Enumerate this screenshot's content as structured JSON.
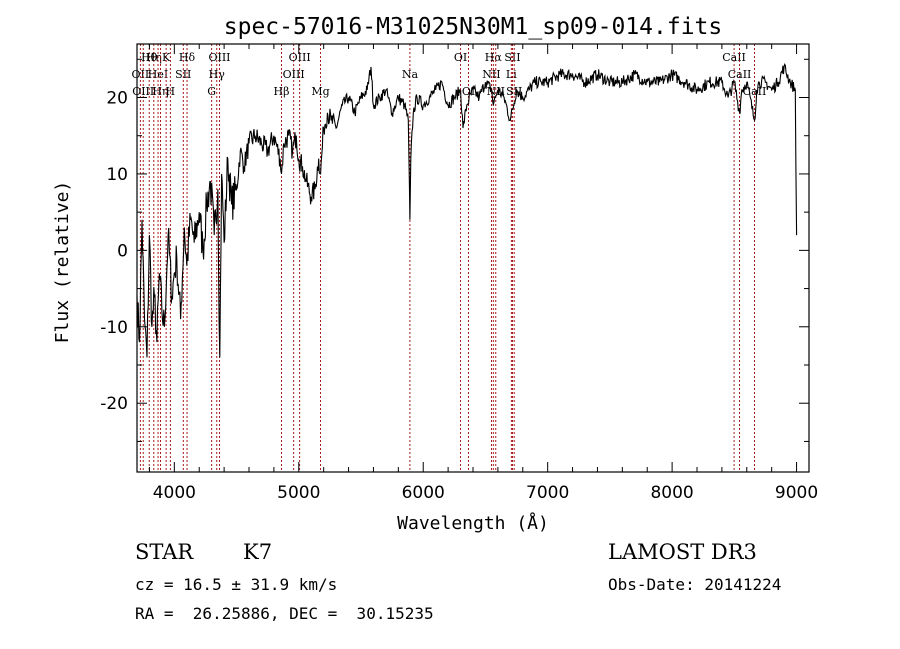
{
  "colors": {
    "axis": "#000000",
    "spectrum": "#000000",
    "line_marker": "#a00000",
    "background": "#ffffff"
  },
  "chart_data": {
    "type": "line",
    "title": "spec-57016-M31025N30M1_sp09-014.fits",
    "xlabel": "Wavelength (Å)",
    "ylabel": "Flux (relative)",
    "xlim": [
      3700,
      9100
    ],
    "ylim": [
      -29,
      27
    ],
    "xticks": [
      4000,
      5000,
      6000,
      7000,
      8000,
      9000
    ],
    "yticks": [
      -20,
      -10,
      0,
      10,
      20
    ],
    "series": [
      {
        "name": "flux",
        "x": [
          3700,
          3720,
          3740,
          3760,
          3780,
          3800,
          3820,
          3840,
          3860,
          3880,
          3900,
          3920,
          3950,
          3980,
          4000,
          4020,
          4050,
          4080,
          4100,
          4130,
          4160,
          4200,
          4230,
          4260,
          4290,
          4320,
          4350,
          4365,
          4380,
          4400,
          4430,
          4460,
          4500,
          4530,
          4560,
          4600,
          4650,
          4700,
          4750,
          4800,
          4850,
          4861,
          4880,
          4920,
          4950,
          4980,
          5000,
          5030,
          5060,
          5100,
          5130,
          5160,
          5175,
          5200,
          5230,
          5260,
          5300,
          5350,
          5400,
          5450,
          5500,
          5550,
          5580,
          5600,
          5650,
          5700,
          5750,
          5800,
          5850,
          5880,
          5893,
          5900,
          5920,
          5950,
          6000,
          6050,
          6100,
          6150,
          6200,
          6250,
          6300,
          6320,
          6350,
          6400,
          6450,
          6500,
          6550,
          6563,
          6580,
          6600,
          6650,
          6700,
          6750,
          6800,
          6850,
          6900,
          6950,
          7000,
          7100,
          7200,
          7300,
          7400,
          7500,
          7600,
          7700,
          7800,
          7900,
          8000,
          8100,
          8200,
          8300,
          8400,
          8450,
          8500,
          8542,
          8560,
          8600,
          8662,
          8680,
          8700,
          8750,
          8800,
          8850,
          8900,
          8950,
          8990,
          9000
        ],
        "y": [
          -6,
          -12,
          4,
          -9,
          -14,
          2,
          -10,
          -6,
          -12,
          -3,
          -8,
          -10,
          2,
          -6,
          -3,
          -1,
          -9,
          3,
          -2,
          4,
          1,
          5,
          0,
          6,
          9,
          2,
          8,
          -14,
          10,
          1,
          12,
          6,
          8,
          13,
          11,
          14,
          15,
          14,
          13,
          15,
          12,
          10,
          14,
          15,
          13,
          15,
          12,
          11,
          9,
          7,
          8,
          12,
          10,
          16,
          18,
          17,
          16,
          19,
          20,
          18,
          20,
          21,
          24,
          19,
          20,
          21,
          18,
          20,
          19,
          17,
          4,
          12,
          18,
          20,
          19,
          20,
          21,
          22,
          19,
          20,
          21,
          16,
          19,
          21,
          20,
          22,
          21,
          19,
          20,
          21,
          20,
          17,
          21,
          20,
          21,
          22,
          22,
          22,
          23,
          23,
          22,
          23,
          22,
          22,
          23,
          22,
          22,
          23,
          22,
          21,
          22,
          22,
          20,
          22,
          18,
          21,
          22,
          17,
          21,
          22,
          22,
          21,
          22,
          24,
          22,
          21,
          2
        ]
      }
    ],
    "line_markers": [
      {
        "wavelength": 3727,
        "row": 1,
        "label": "OII"
      },
      {
        "wavelength": 3750,
        "row": 2,
        "label": "OIII"
      },
      {
        "wavelength": 3798,
        "row": 0,
        "label": "Hθ"
      },
      {
        "wavelength": 3835,
        "row": 0,
        "label": "Hη"
      },
      {
        "wavelength": 3869,
        "row": 1,
        "label": "HeI"
      },
      {
        "wavelength": 3889,
        "row": 2,
        "label": "Hη"
      },
      {
        "wavelength": 3934,
        "row": 0,
        "label": "K"
      },
      {
        "wavelength": 3968,
        "row": 2,
        "label": "H"
      },
      {
        "wavelength": 4072,
        "row": 1,
        "label": "SII"
      },
      {
        "wavelength": 4102,
        "row": 0,
        "label": "Hδ"
      },
      {
        "wavelength": 4300,
        "row": 2,
        "label": "G"
      },
      {
        "wavelength": 4341,
        "row": 1,
        "label": "Hγ"
      },
      {
        "wavelength": 4363,
        "row": 0,
        "label": "OIII"
      },
      {
        "wavelength": 4861,
        "row": 2,
        "label": "Hβ"
      },
      {
        "wavelength": 4959,
        "row": 1,
        "label": "OIII"
      },
      {
        "wavelength": 5007,
        "row": 0,
        "label": "OIII"
      },
      {
        "wavelength": 5175,
        "row": 2,
        "label": "Mg"
      },
      {
        "wavelength": 5893,
        "row": 1,
        "label": "Na"
      },
      {
        "wavelength": 6300,
        "row": 0,
        "label": "OI"
      },
      {
        "wavelength": 6364,
        "row": 2,
        "label": "OI"
      },
      {
        "wavelength": 6548,
        "row": 1,
        "label": "NII"
      },
      {
        "wavelength": 6563,
        "row": 0,
        "label": "Hα"
      },
      {
        "wavelength": 6583,
        "row": 2,
        "label": "NII"
      },
      {
        "wavelength": 6708,
        "row": 1,
        "label": "Li"
      },
      {
        "wavelength": 6717,
        "row": 0,
        "label": "SII"
      },
      {
        "wavelength": 6731,
        "row": 2,
        "label": "SII"
      },
      {
        "wavelength": 8498,
        "row": 0,
        "label": "CaII"
      },
      {
        "wavelength": 8542,
        "row": 1,
        "label": "CaII"
      },
      {
        "wavelength": 8662,
        "row": 2,
        "label": "CaII"
      }
    ]
  },
  "info": {
    "class_label": "STAR",
    "subclass": "K7",
    "cz": "cz = 16.5 ± 31.9 km/s",
    "coords": "RA =  26.25886, DEC =  30.15235",
    "survey": "LAMOST DR3",
    "obs_date": "Obs-Date: 20141224"
  }
}
